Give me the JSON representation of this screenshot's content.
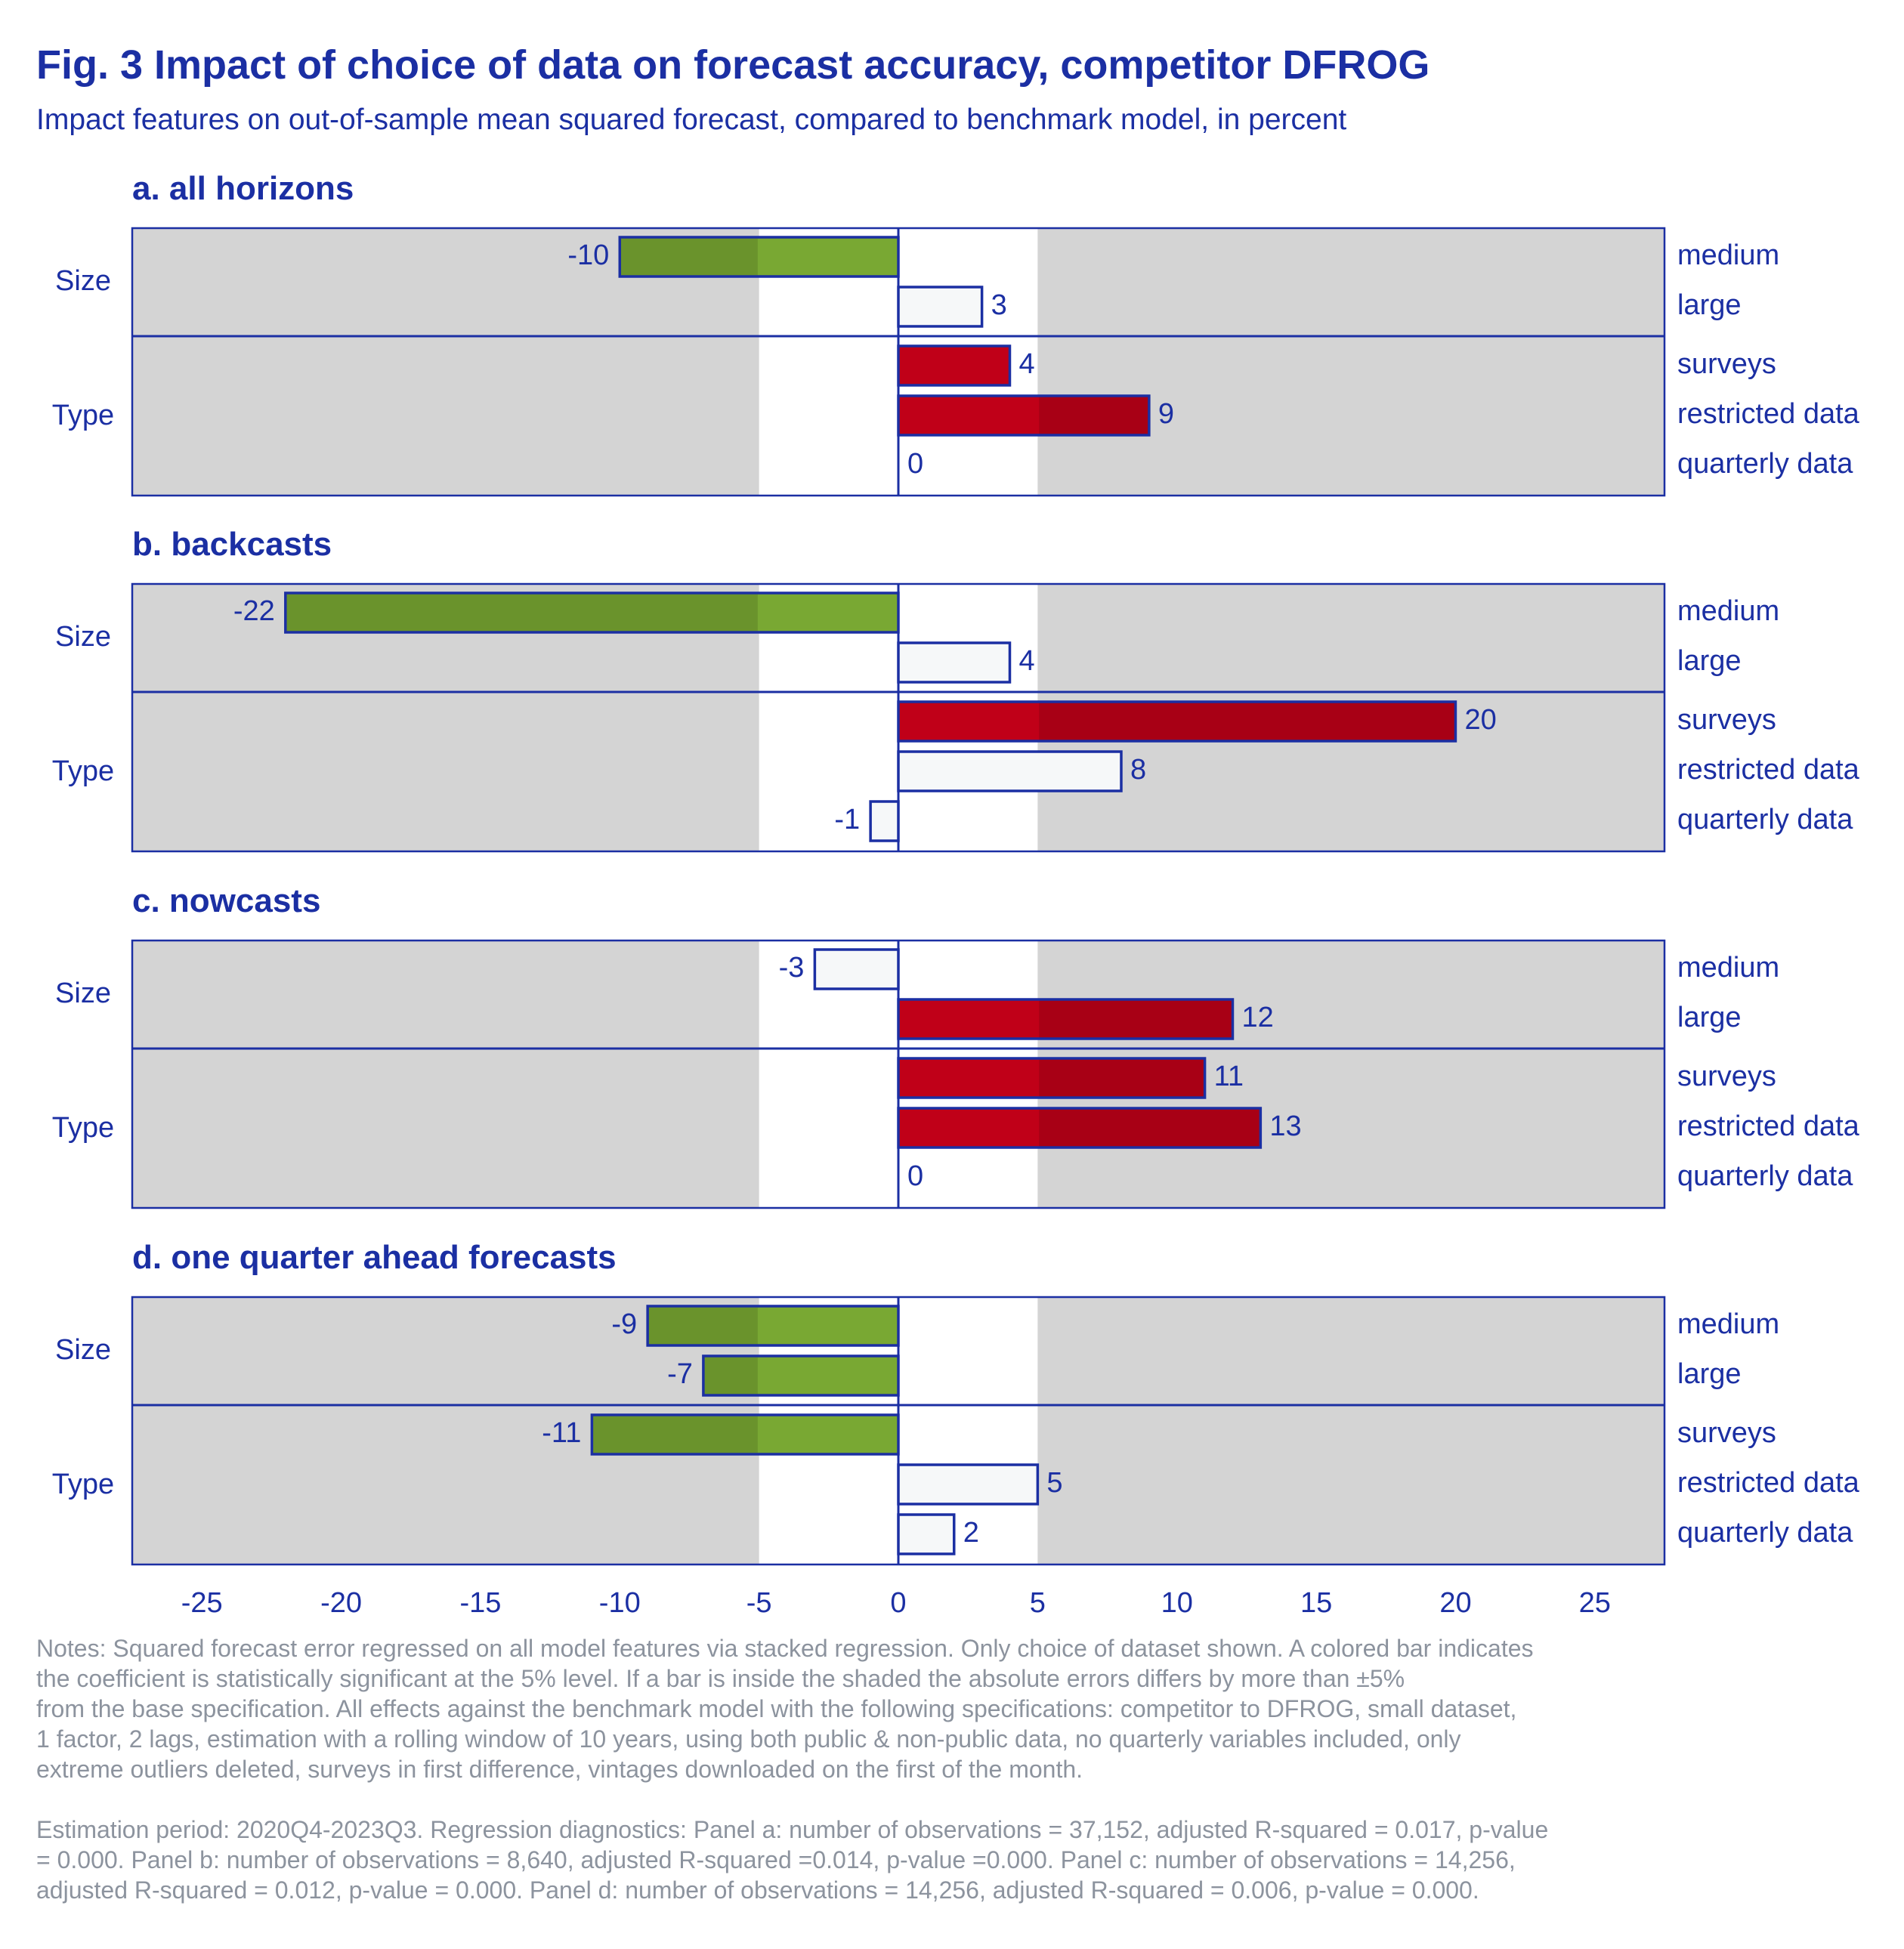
{
  "title": "Fig. 3 Impact of choice of data on forecast accuracy, competitor DFROG",
  "subtitle": "Impact features on out-of-sample mean squared forecast, compared to benchmark model, in percent",
  "colors": {
    "text": "#1b2fa3",
    "frame": "#1b2fa3",
    "shade": "#d4d4d4",
    "negative_significant": "#79a833",
    "positive_significant": "#c00018",
    "not_significant": "#f6f8f9",
    "notes": "#8c939e"
  },
  "chart_data": {
    "type": "bar",
    "orientation": "horizontal",
    "xlim": [
      -27.5,
      27.5
    ],
    "xticks": [
      -25,
      -20,
      -15,
      -10,
      -5,
      0,
      5,
      10,
      15,
      20,
      25
    ],
    "unshaded_band": [
      -5,
      5
    ],
    "group_labels": [
      "Size",
      "Type"
    ],
    "categories": [
      "medium",
      "large",
      "surveys",
      "restricted data",
      "quarterly data"
    ],
    "category_groups": [
      "Size",
      "Size",
      "Type",
      "Type",
      "Type"
    ],
    "panels": [
      {
        "title": "a. all horizons",
        "values": [
          -10,
          3,
          4,
          9,
          0
        ],
        "significant": [
          true,
          false,
          true,
          true,
          false
        ]
      },
      {
        "title": "b. backcasts",
        "values": [
          -22,
          4,
          20,
          8,
          -1
        ],
        "significant": [
          true,
          false,
          true,
          false,
          false
        ]
      },
      {
        "title": "c. nowcasts",
        "values": [
          -3,
          12,
          11,
          13,
          0
        ],
        "significant": [
          false,
          true,
          true,
          true,
          false
        ]
      },
      {
        "title": "d. one quarter ahead forecasts",
        "values": [
          -9,
          -7,
          -11,
          5,
          2
        ],
        "significant": [
          true,
          true,
          true,
          false,
          false
        ]
      }
    ]
  },
  "notes": {
    "paragraph1": "Notes: Squared forecast error regressed on all model features via stacked regression. Only choice of dataset shown. A colored bar indicates\nthe coefficient is statistically significant at the 5% level. If a bar is inside the shaded the absolute errors differs by more than ±5%\nfrom the base specification. All effects against the benchmark model with the following specifications: competitor to DFROG, small dataset,\n1 factor, 2 lags, estimation with a rolling window of 10 years, using both public & non-public data, no quarterly variables included, only\nextreme outliers deleted, surveys in first difference, vintages downloaded on the first of the month.",
    "paragraph2": " Estimation period: 2020Q4-2023Q3. Regression diagnostics: Panel a: number of observations = 37,152, adjusted R-squared = 0.017, p-value\n= 0.000. Panel b: number of observations = 8,640, adjusted R-squared =0.014, p-value =0.000. Panel c: number of observations = 14,256,\nadjusted R-squared = 0.012, p-value = 0.000. Panel d: number of observations = 14,256, adjusted R-squared = 0.006, p-value = 0.000."
  }
}
